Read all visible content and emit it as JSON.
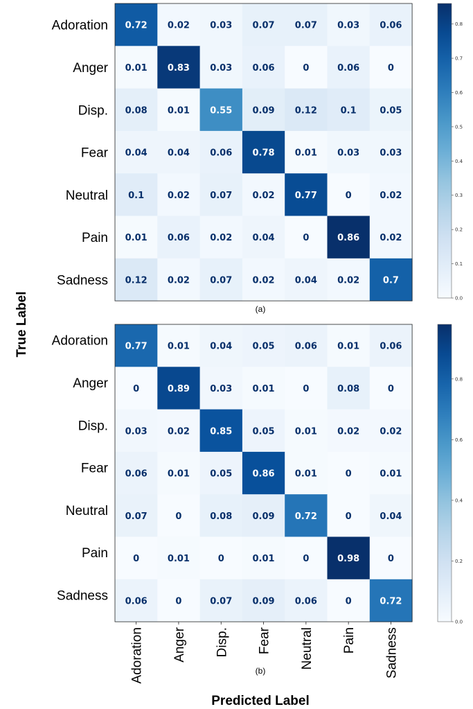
{
  "chart_data": [
    {
      "type": "heatmap",
      "caption": "(a)",
      "rows": [
        "Adoration",
        "Anger",
        "Disp.",
        "Fear",
        "Neutral",
        "Pain",
        "Sadness"
      ],
      "cols": [
        "Adoration",
        "Anger",
        "Disp.",
        "Fear",
        "Neutral",
        "Pain",
        "Sadness"
      ],
      "values": [
        [
          0.72,
          0.02,
          0.03,
          0.07,
          0.07,
          0.03,
          0.06
        ],
        [
          0.01,
          0.83,
          0.03,
          0.06,
          0,
          0.06,
          0
        ],
        [
          0.08,
          0.01,
          0.55,
          0.09,
          0.12,
          0.1,
          0.05
        ],
        [
          0.04,
          0.04,
          0.06,
          0.78,
          0.01,
          0.03,
          0.03
        ],
        [
          0.1,
          0.02,
          0.07,
          0.02,
          0.77,
          0,
          0.02
        ],
        [
          0.01,
          0.06,
          0.02,
          0.04,
          0,
          0.86,
          0.02
        ],
        [
          0.12,
          0.02,
          0.07,
          0.02,
          0.04,
          0.02,
          0.7
        ]
      ],
      "colorbar": {
        "range": [
          0,
          0.86
        ],
        "ticks": [
          "0.0",
          "0.1",
          "0.2",
          "0.3",
          "0.4",
          "0.5",
          "0.6",
          "0.7",
          "0.8"
        ]
      }
    },
    {
      "type": "heatmap",
      "caption": "(b)",
      "rows": [
        "Adoration",
        "Anger",
        "Disp.",
        "Fear",
        "Neutral",
        "Pain",
        "Sadness"
      ],
      "cols": [
        "Adoration",
        "Anger",
        "Disp.",
        "Fear",
        "Neutral",
        "Pain",
        "Sadness"
      ],
      "values": [
        [
          0.77,
          0.01,
          0.04,
          0.05,
          0.06,
          0.01,
          0.06
        ],
        [
          0,
          0.89,
          0.03,
          0.01,
          0,
          0.08,
          0
        ],
        [
          0.03,
          0.02,
          0.85,
          0.05,
          0.01,
          0.02,
          0.02
        ],
        [
          0.06,
          0.01,
          0.05,
          0.86,
          0.01,
          0,
          0.01
        ],
        [
          0.07,
          0,
          0.08,
          0.09,
          0.72,
          0,
          0.04
        ],
        [
          0,
          0.01,
          0,
          0.01,
          0,
          0.98,
          0
        ],
        [
          0.06,
          0,
          0.07,
          0.09,
          0.06,
          0,
          0.72
        ]
      ],
      "colorbar": {
        "range": [
          0,
          0.98
        ],
        "ticks": [
          "0.0",
          "0.2",
          "0.4",
          "0.6",
          "0.8"
        ]
      }
    }
  ],
  "ylabel": "True Label",
  "xlabel": "Predicted Label",
  "colors": {
    "low": "#f7fbff",
    "high": "#08306b",
    "text_dark": "#08306b",
    "text_light": "#ffffff"
  }
}
